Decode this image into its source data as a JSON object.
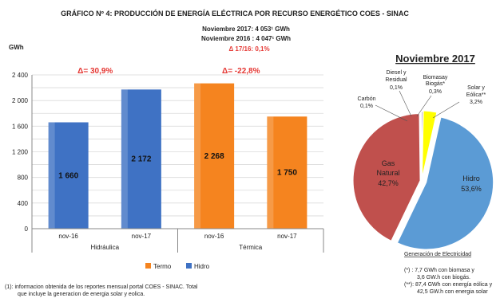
{
  "header": {
    "title": "GRÁFICO Nº 4: PRODUCCIÓN DE ENERGÍA ELÉCTRICA POR RECURSO ENERGÉTICO  COES - SINAC",
    "total_2017": "Noviembre 2017: 4 053¹ GWh",
    "total_2016": "Noviembre 2016 : 4 047¹ GWh",
    "delta_total": "Δ 17/16:  0,1%"
  },
  "chart_data": [
    {
      "type": "bar",
      "ylabel": "GWh",
      "ylim": [
        0,
        2400
      ],
      "yticks": [
        "0",
        "200",
        "400",
        "600",
        "800",
        "1 000",
        "1 200",
        "1 400",
        "1 600",
        "1 800",
        "2 000",
        "2 200",
        "2 400"
      ],
      "ytick_labels_shown": [
        "0",
        "400",
        "800",
        "1 200",
        "1 600",
        "2 000",
        "2 400"
      ],
      "groups": [
        {
          "name": "Hidráulica",
          "delta": "Δ= 30,9%",
          "bars": [
            {
              "category": "nov-16",
              "value": 1660,
              "label": "1 660",
              "series": "Hidro"
            },
            {
              "category": "nov-17",
              "value": 2172,
              "label": "2 172",
              "series": "Hidro"
            }
          ]
        },
        {
          "name": "Térmica",
          "delta": "Δ= -22,8%",
          "bars": [
            {
              "category": "nov-16",
              "value": 2268,
              "label": "2 268",
              "series": "Termo"
            },
            {
              "category": "nov-17",
              "value": 1750,
              "label": "1 750",
              "series": "Termo"
            }
          ]
        }
      ],
      "legend": [
        {
          "name": "Termo",
          "color": "#f5841f"
        },
        {
          "name": "Hidro",
          "color": "#3f72c4"
        }
      ],
      "legend_placement": "bottom"
    },
    {
      "type": "pie",
      "title": "Noviembre 2017",
      "caption": "Generación de Electricidad",
      "slices": [
        {
          "name": "Hidro",
          "value": 53.6,
          "label_name": "Hidro",
          "label_pct": "53,6%",
          "color": "#5b9bd5"
        },
        {
          "name": "Gas Natural",
          "value": 42.7,
          "label_name_1": "Gas",
          "label_name_2": "Natural",
          "label_pct": "42,7%",
          "color": "#c0504d"
        },
        {
          "name": "Carbón",
          "value": 0.1,
          "label_name": "Carbón",
          "label_pct": "0,1%",
          "color": "#7f7f7f"
        },
        {
          "name": "Diesel y Residual",
          "value": 0.1,
          "label_name_1": "Diesel y",
          "label_name_2": "Residual",
          "label_pct": "0,1%",
          "color": "#9bbb59"
        },
        {
          "name": "Biomasa y Biogás*",
          "value": 0.3,
          "label_name_1": "Biomasay",
          "label_name_2": "Biogás*",
          "label_pct": "0,3%",
          "color": "#8064a2"
        },
        {
          "name": "Solar y Eólica**",
          "value": 3.2,
          "label_name_1": "Solar y",
          "label_name_2": "Eólica**",
          "label_pct": "3,2%",
          "color": "#ffff00"
        }
      ]
    }
  ],
  "footnotes": {
    "note1_line1": "(1): informacion obtenida de los reportes mensual portal COES - SINAC. Total",
    "note1_line2": "que incluye la generacion de energia solar y eolica.",
    "star1_line1": "(*)  : 7,7 GWh con biomasa  y",
    "star1_line2": "3,6 GW.h con biogás.",
    "star2_line1": "(**): 87,4 GWh con energía  eólica y",
    "star2_line2": "42,5 GW.h  con energia solar"
  }
}
